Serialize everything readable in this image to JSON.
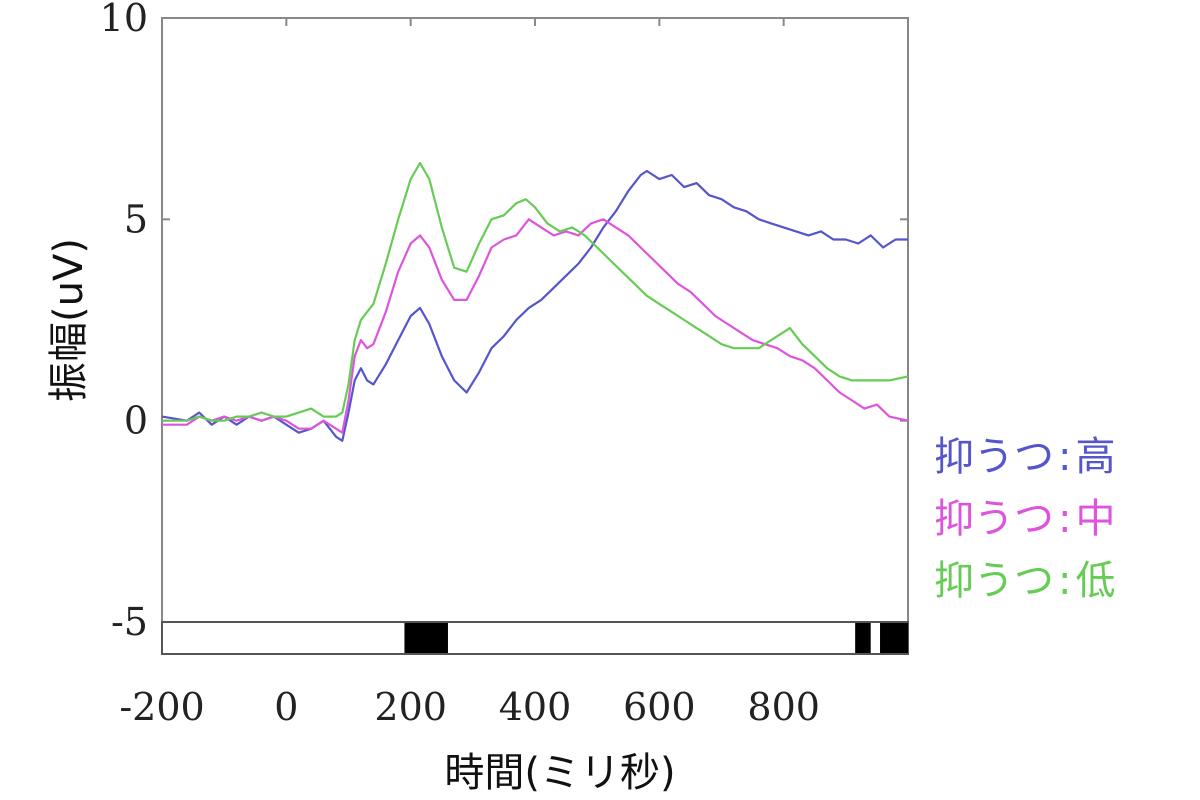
{
  "chart_data": {
    "type": "line",
    "title": "",
    "xlabel": "時間(ミリ秒)",
    "ylabel": "振幅(uV)",
    "xlim": [
      -200,
      1000
    ],
    "ylim": [
      -5,
      10
    ],
    "x_ticks": [
      -200,
      0,
      200,
      400,
      600,
      800
    ],
    "x_tick_labels": [
      "-200",
      "0",
      "200",
      "400",
      "600",
      "800"
    ],
    "y_ticks": [
      -5,
      0,
      5,
      10
    ],
    "y_tick_labels": [
      "-5",
      "0",
      "5",
      "10"
    ],
    "grid": false,
    "legend_position": "right",
    "series": [
      {
        "name": "抑うつ:高",
        "legend_prefix": "抑うつ",
        "legend_suffix": "高",
        "color": "#5555cc",
        "points": [
          [
            -200,
            0.1
          ],
          [
            -160,
            0.0
          ],
          [
            -140,
            0.2
          ],
          [
            -120,
            -0.1
          ],
          [
            -100,
            0.1
          ],
          [
            -80,
            -0.1
          ],
          [
            -60,
            0.1
          ],
          [
            -40,
            0.0
          ],
          [
            -20,
            0.1
          ],
          [
            0,
            -0.1
          ],
          [
            20,
            -0.3
          ],
          [
            40,
            -0.2
          ],
          [
            60,
            0.0
          ],
          [
            80,
            -0.4
          ],
          [
            90,
            -0.5
          ],
          [
            100,
            0.2
          ],
          [
            110,
            1.0
          ],
          [
            120,
            1.3
          ],
          [
            130,
            1.0
          ],
          [
            140,
            0.9
          ],
          [
            160,
            1.4
          ],
          [
            180,
            2.0
          ],
          [
            200,
            2.6
          ],
          [
            215,
            2.8
          ],
          [
            230,
            2.4
          ],
          [
            250,
            1.6
          ],
          [
            270,
            1.0
          ],
          [
            290,
            0.7
          ],
          [
            310,
            1.2
          ],
          [
            330,
            1.8
          ],
          [
            350,
            2.1
          ],
          [
            370,
            2.5
          ],
          [
            390,
            2.8
          ],
          [
            410,
            3.0
          ],
          [
            430,
            3.3
          ],
          [
            450,
            3.6
          ],
          [
            470,
            3.9
          ],
          [
            490,
            4.3
          ],
          [
            510,
            4.8
          ],
          [
            530,
            5.2
          ],
          [
            550,
            5.7
          ],
          [
            570,
            6.1
          ],
          [
            580,
            6.2
          ],
          [
            600,
            6.0
          ],
          [
            620,
            6.1
          ],
          [
            640,
            5.8
          ],
          [
            660,
            5.9
          ],
          [
            680,
            5.6
          ],
          [
            700,
            5.5
          ],
          [
            720,
            5.3
          ],
          [
            740,
            5.2
          ],
          [
            760,
            5.0
          ],
          [
            780,
            4.9
          ],
          [
            800,
            4.8
          ],
          [
            820,
            4.7
          ],
          [
            840,
            4.6
          ],
          [
            860,
            4.7
          ],
          [
            880,
            4.5
          ],
          [
            900,
            4.5
          ],
          [
            920,
            4.4
          ],
          [
            940,
            4.6
          ],
          [
            960,
            4.3
          ],
          [
            980,
            4.5
          ],
          [
            1000,
            4.5
          ]
        ]
      },
      {
        "name": "抑うつ:中",
        "legend_prefix": "抑うつ",
        "legend_suffix": "中",
        "color": "#dd55dd",
        "points": [
          [
            -200,
            -0.1
          ],
          [
            -160,
            -0.1
          ],
          [
            -140,
            0.1
          ],
          [
            -120,
            0.0
          ],
          [
            -100,
            0.1
          ],
          [
            -80,
            0.0
          ],
          [
            -60,
            0.1
          ],
          [
            -40,
            0.0
          ],
          [
            -20,
            0.1
          ],
          [
            0,
            0.0
          ],
          [
            20,
            -0.2
          ],
          [
            40,
            -0.2
          ],
          [
            60,
            0.0
          ],
          [
            80,
            -0.2
          ],
          [
            90,
            -0.3
          ],
          [
            100,
            0.5
          ],
          [
            110,
            1.6
          ],
          [
            120,
            2.0
          ],
          [
            130,
            1.8
          ],
          [
            140,
            1.9
          ],
          [
            160,
            2.7
          ],
          [
            180,
            3.7
          ],
          [
            200,
            4.4
          ],
          [
            215,
            4.6
          ],
          [
            230,
            4.3
          ],
          [
            250,
            3.5
          ],
          [
            270,
            3.0
          ],
          [
            290,
            3.0
          ],
          [
            310,
            3.6
          ],
          [
            330,
            4.3
          ],
          [
            350,
            4.5
          ],
          [
            370,
            4.6
          ],
          [
            390,
            5.0
          ],
          [
            410,
            4.8
          ],
          [
            430,
            4.6
          ],
          [
            450,
            4.7
          ],
          [
            470,
            4.6
          ],
          [
            490,
            4.9
          ],
          [
            510,
            5.0
          ],
          [
            530,
            4.8
          ],
          [
            550,
            4.6
          ],
          [
            570,
            4.3
          ],
          [
            590,
            4.0
          ],
          [
            610,
            3.7
          ],
          [
            630,
            3.4
          ],
          [
            650,
            3.2
          ],
          [
            670,
            2.9
          ],
          [
            690,
            2.6
          ],
          [
            710,
            2.4
          ],
          [
            730,
            2.2
          ],
          [
            750,
            2.0
          ],
          [
            770,
            1.9
          ],
          [
            790,
            1.8
          ],
          [
            810,
            1.6
          ],
          [
            830,
            1.5
          ],
          [
            850,
            1.3
          ],
          [
            870,
            1.0
          ],
          [
            890,
            0.7
          ],
          [
            910,
            0.5
          ],
          [
            930,
            0.3
          ],
          [
            950,
            0.4
          ],
          [
            970,
            0.1
          ],
          [
            1000,
            0.0
          ]
        ]
      },
      {
        "name": "抑うつ:低",
        "legend_prefix": "抑うつ",
        "legend_suffix": "低",
        "color": "#66cc55",
        "points": [
          [
            -200,
            0.0
          ],
          [
            -160,
            0.0
          ],
          [
            -140,
            0.1
          ],
          [
            -120,
            0.0
          ],
          [
            -100,
            0.0
          ],
          [
            -80,
            0.1
          ],
          [
            -60,
            0.1
          ],
          [
            -40,
            0.2
          ],
          [
            -20,
            0.1
          ],
          [
            0,
            0.1
          ],
          [
            20,
            0.2
          ],
          [
            40,
            0.3
          ],
          [
            60,
            0.1
          ],
          [
            80,
            0.1
          ],
          [
            90,
            0.2
          ],
          [
            100,
            0.9
          ],
          [
            110,
            2.0
          ],
          [
            120,
            2.5
          ],
          [
            130,
            2.7
          ],
          [
            140,
            2.9
          ],
          [
            160,
            3.9
          ],
          [
            180,
            5.0
          ],
          [
            200,
            6.0
          ],
          [
            215,
            6.4
          ],
          [
            230,
            6.0
          ],
          [
            250,
            4.8
          ],
          [
            270,
            3.8
          ],
          [
            290,
            3.7
          ],
          [
            310,
            4.4
          ],
          [
            330,
            5.0
          ],
          [
            350,
            5.1
          ],
          [
            370,
            5.4
          ],
          [
            385,
            5.5
          ],
          [
            400,
            5.3
          ],
          [
            420,
            4.9
          ],
          [
            440,
            4.7
          ],
          [
            460,
            4.8
          ],
          [
            480,
            4.6
          ],
          [
            500,
            4.3
          ],
          [
            520,
            4.0
          ],
          [
            540,
            3.7
          ],
          [
            560,
            3.4
          ],
          [
            580,
            3.1
          ],
          [
            600,
            2.9
          ],
          [
            620,
            2.7
          ],
          [
            640,
            2.5
          ],
          [
            660,
            2.3
          ],
          [
            680,
            2.1
          ],
          [
            700,
            1.9
          ],
          [
            720,
            1.8
          ],
          [
            740,
            1.8
          ],
          [
            760,
            1.8
          ],
          [
            780,
            2.0
          ],
          [
            800,
            2.2
          ],
          [
            810,
            2.3
          ],
          [
            830,
            1.9
          ],
          [
            850,
            1.6
          ],
          [
            870,
            1.3
          ],
          [
            890,
            1.1
          ],
          [
            910,
            1.0
          ],
          [
            930,
            1.0
          ],
          [
            950,
            1.0
          ],
          [
            970,
            1.0
          ],
          [
            1000,
            1.1
          ]
        ]
      }
    ],
    "significance_bar": {
      "segments": [
        [
          190,
          260
        ],
        [
          915,
          940
        ],
        [
          955,
          1000
        ]
      ]
    }
  }
}
